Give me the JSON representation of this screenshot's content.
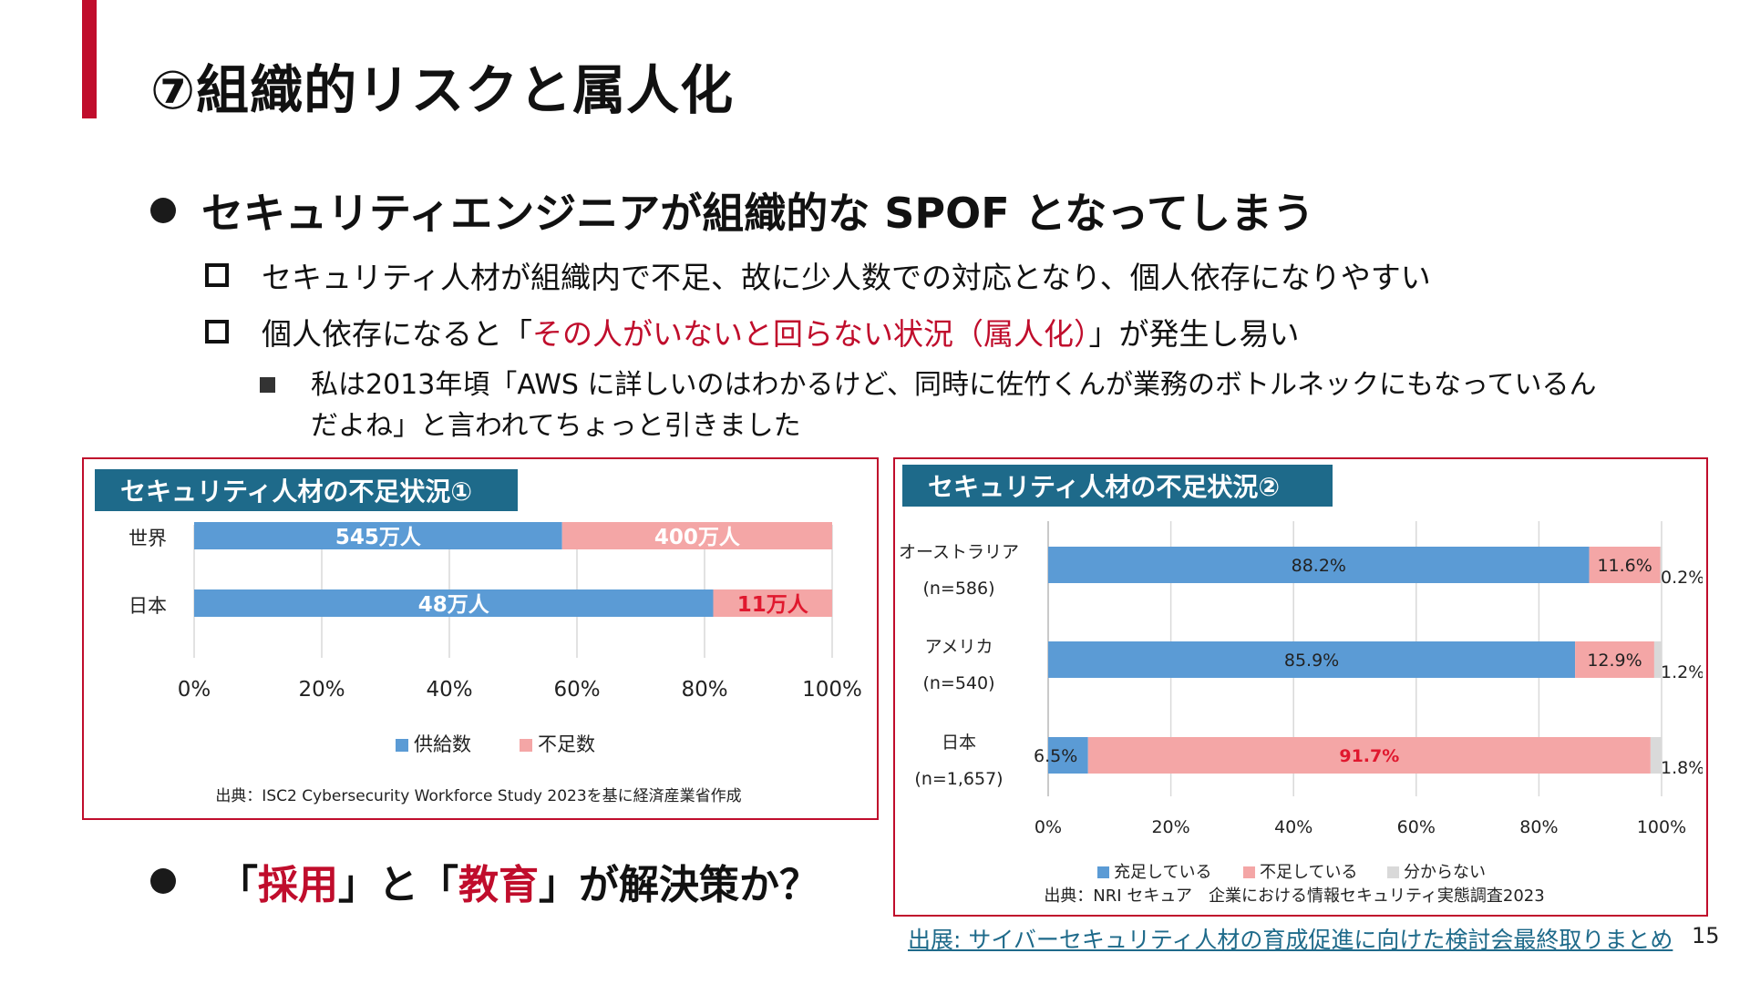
{
  "slide": {
    "title": "⑦組織的リスクと属人化",
    "bullet1": "セキュリティエンジニアが組織的な SPOF となってしまう",
    "sub1": "セキュリティ人材が組織内で不足、故に少人数での対応となり、個人依存になりやすい",
    "sub2_prefix": "個人依存になると「",
    "sub2_red": "その人がいないと回らない状況（属人化）",
    "sub2_suffix": "」が発生し易い",
    "note": "私は2013年頃「AWS に詳しいのはわかるけど、同時に佐竹くんが業務のボトルネックにもなっているんだよね」と言われてちょっと引きました",
    "bullet2_a": "「",
    "bullet2_red1": "採用",
    "bullet2_b": "」と「",
    "bullet2_red2": "教育",
    "bullet2_c": "」が解決策か？",
    "source_link": "出展: サイバーセキュリティ人材の育成促進に向けた検討会最終取りまとめ",
    "page_number": "15"
  },
  "colors": {
    "accent": "#c00d2c",
    "panel_head": "#1e6a8a",
    "supply": "#5b9bd5",
    "shortage": "#f4a6a6",
    "unknown": "#d9d9d9"
  },
  "chart_data": [
    {
      "type": "bar",
      "orientation": "horizontal",
      "stacked": "percent",
      "title": "セキュリティ人材の不足状況①",
      "categories": [
        "世界",
        "日本"
      ],
      "series": [
        {
          "name": "供給数",
          "values": [
            545,
            48
          ],
          "labels": [
            "545万人",
            "48万人"
          ],
          "color": "#5b9bd5"
        },
        {
          "name": "不足数",
          "values": [
            400,
            11
          ],
          "labels": [
            "400万人",
            "11万人"
          ],
          "color": "#f4a6a6"
        }
      ],
      "xticks": [
        "0%",
        "20%",
        "40%",
        "60%",
        "80%",
        "100%"
      ],
      "xlim": [
        0,
        100
      ],
      "legend": "bottom",
      "source": "出典：ISC2 Cybersecurity Workforce Study 2023を基に経済産業省作成"
    },
    {
      "type": "bar",
      "orientation": "horizontal",
      "stacked": "percent",
      "title": "セキュリティ人材の不足状況②",
      "categories": [
        {
          "name": "オーストラリア",
          "n": "(n=586)"
        },
        {
          "name": "アメリカ",
          "n": "(n=540)"
        },
        {
          "name": "日本",
          "n": "(n=1,657)"
        }
      ],
      "series": [
        {
          "name": "充足している",
          "values": [
            88.2,
            85.9,
            6.5
          ],
          "labels": [
            "88.2%",
            "85.9%",
            "6.5%"
          ],
          "color": "#5b9bd5"
        },
        {
          "name": "不足している",
          "values": [
            11.6,
            12.9,
            91.7
          ],
          "labels": [
            "11.6%",
            "12.9%",
            "91.7%"
          ],
          "color": "#f4a6a6"
        },
        {
          "name": "分からない",
          "values": [
            0.2,
            1.2,
            1.8
          ],
          "labels": [
            "0.2%",
            "1.2%",
            "1.8%"
          ],
          "color": "#d9d9d9"
        }
      ],
      "xticks": [
        "0%",
        "20%",
        "40%",
        "60%",
        "80%",
        "100%"
      ],
      "xlim": [
        0,
        100
      ],
      "legend": "bottom",
      "source": "出典：NRI セキュア　企業における情報セキュリティ実態調査2023"
    }
  ]
}
